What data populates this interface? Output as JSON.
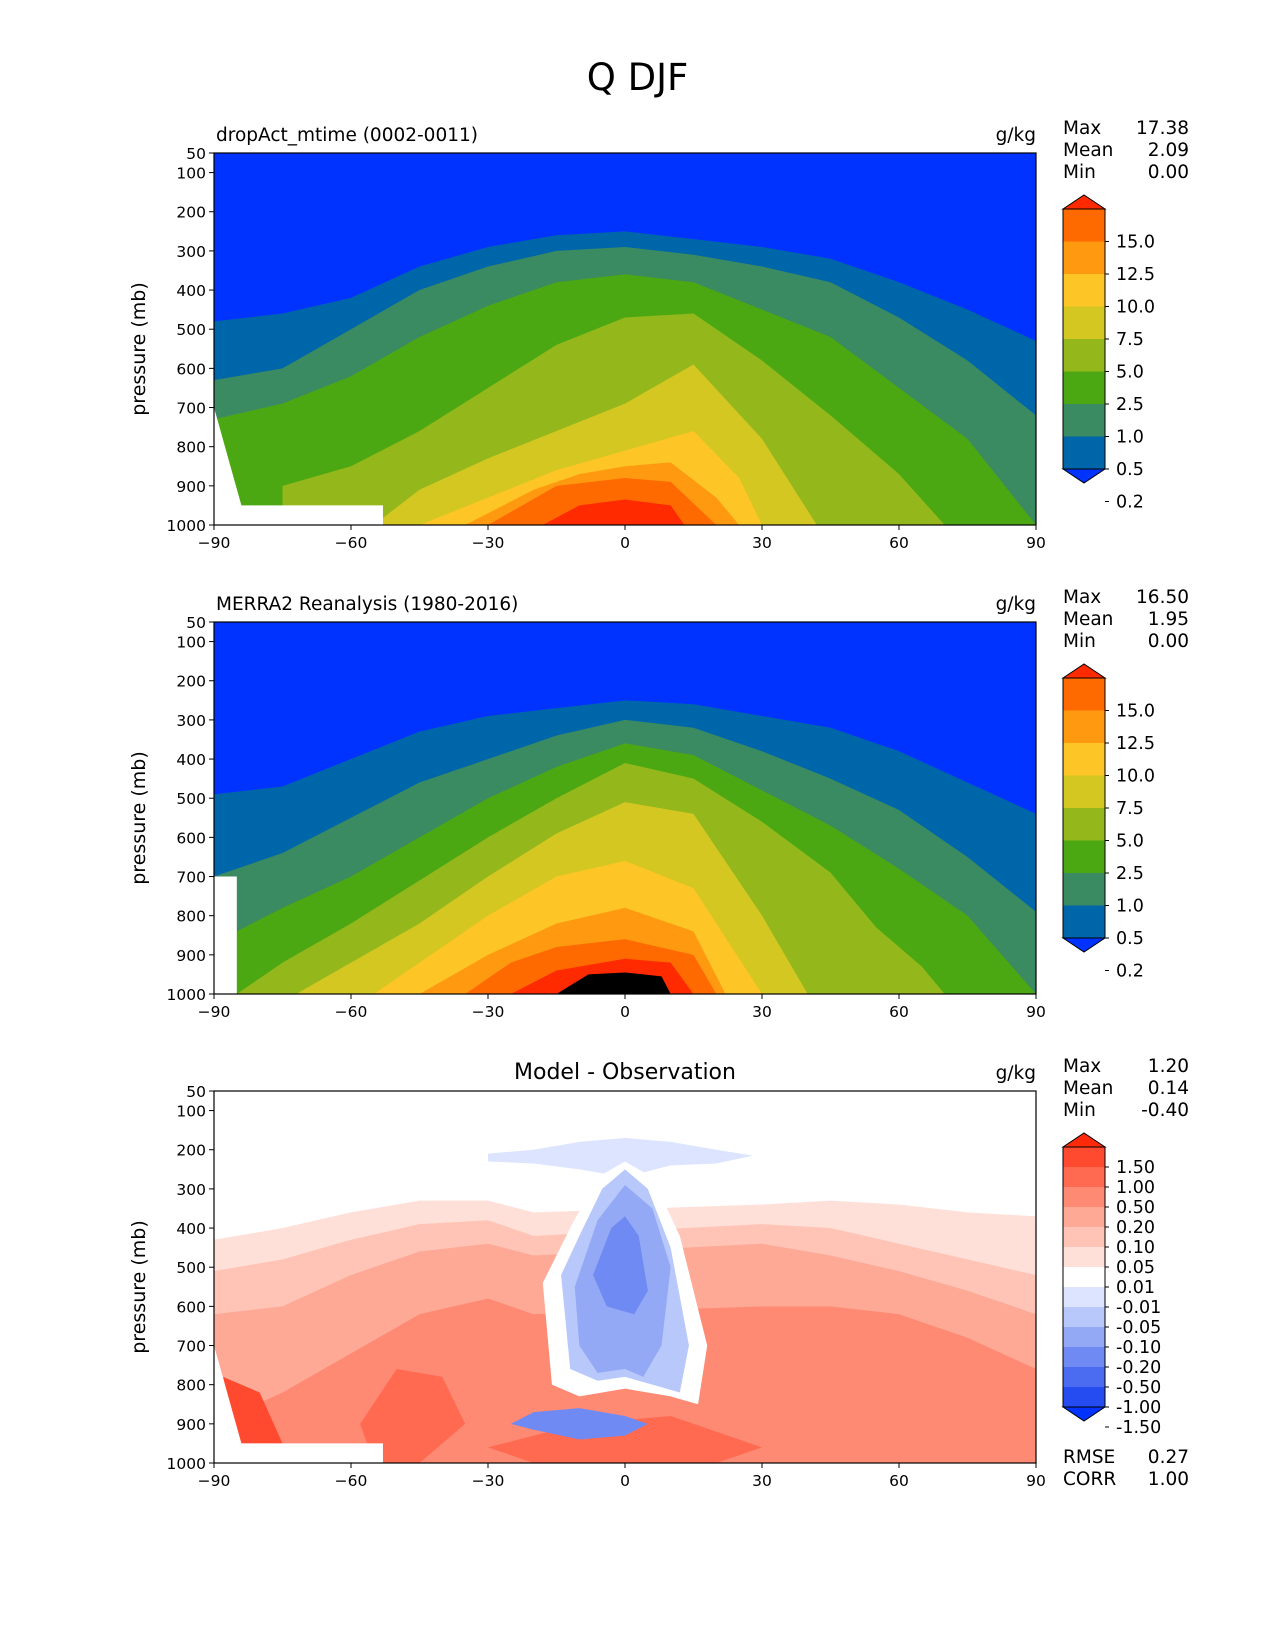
{
  "figure_title": "Q DJF",
  "chart_data": [
    {
      "type": "heatmap",
      "title": "dropAct_mtime (0002-0011)",
      "center_title": "",
      "units": "g/kg",
      "xlabel": "",
      "ylabel": "pressure (mb)",
      "xlim": [
        -90,
        90
      ],
      "ylim": [
        1000,
        50
      ],
      "x_ticks": [
        -90,
        -60,
        -30,
        0,
        30,
        60,
        90
      ],
      "y_ticks": [
        50,
        100,
        200,
        300,
        400,
        500,
        600,
        700,
        800,
        900,
        1000
      ],
      "stats": [
        {
          "label": "Max",
          "value": "17.38"
        },
        {
          "label": "Mean",
          "value": "2.09"
        },
        {
          "label": "Min",
          "value": "0.00"
        }
      ],
      "colorbar": {
        "extend": "both",
        "labels": [
          "15.0",
          "12.5",
          "10.0",
          "7.5",
          "5.0",
          "2.5",
          "1.0",
          "0.5",
          "0.2"
        ],
        "colors": [
          "#ff2a00",
          "#ff6a00",
          "#ff9a10",
          "#fdc525",
          "#d4c722",
          "#94b81b",
          "#4ca812",
          "#3a8a62",
          "#0066aa",
          "#0033ff"
        ]
      },
      "levels": [
        0.2,
        0.5,
        1.0,
        2.5,
        5.0,
        7.5,
        10.0,
        12.5,
        15.0
      ],
      "contours": [
        {
          "lat": [
            -90,
            -75,
            -60,
            -45,
            -30,
            -15,
            0,
            15,
            30,
            45,
            60,
            75,
            90
          ],
          "p": [
            480,
            460,
            420,
            340,
            290,
            260,
            250,
            270,
            290,
            320,
            380,
            450,
            530
          ]
        },
        {
          "lat": [
            -90,
            -75,
            -60,
            -45,
            -30,
            -15,
            0,
            15,
            30,
            45,
            60,
            75,
            90
          ],
          "p": [
            630,
            600,
            500,
            400,
            340,
            300,
            290,
            310,
            340,
            380,
            470,
            580,
            720
          ]
        },
        {
          "lat": [
            -90,
            -75,
            -60,
            -45,
            -30,
            -15,
            0,
            15,
            30,
            45,
            60,
            75,
            90
          ],
          "p": [
            730,
            690,
            620,
            520,
            440,
            380,
            360,
            380,
            450,
            520,
            650,
            780,
            1000
          ]
        },
        {
          "lat": [
            -75,
            -60,
            -45,
            -30,
            -15,
            0,
            15,
            30,
            45,
            60,
            70
          ],
          "p": [
            900,
            850,
            760,
            650,
            540,
            470,
            460,
            580,
            720,
            870,
            1000
          ]
        },
        {
          "lat": [
            -55,
            -45,
            -30,
            -15,
            0,
            15,
            30,
            42
          ],
          "p": [
            1000,
            910,
            830,
            760,
            690,
            590,
            780,
            1000
          ]
        },
        {
          "lat": [
            -45,
            -30,
            -15,
            0,
            15,
            25,
            30
          ],
          "p": [
            1000,
            930,
            860,
            810,
            760,
            880,
            1000
          ]
        },
        {
          "lat": [
            -35,
            -20,
            -10,
            0,
            10,
            20,
            25
          ],
          "p": [
            1000,
            910,
            870,
            850,
            840,
            930,
            1000
          ]
        },
        {
          "lat": [
            -30,
            -15,
            0,
            10,
            20
          ],
          "p": [
            1000,
            900,
            880,
            890,
            1000
          ]
        },
        {
          "lat": [
            -18,
            -10,
            0,
            10,
            13
          ],
          "p": [
            1000,
            950,
            935,
            950,
            1000
          ]
        }
      ],
      "mask": {
        "lat": [
          -90,
          -84,
          -53,
          -53
        ],
        "p": [
          700,
          950,
          950,
          1000
        ]
      }
    },
    {
      "type": "heatmap",
      "title": "MERRA2 Reanalysis (1980-2016)",
      "center_title": "",
      "units": "g/kg",
      "xlabel": "",
      "ylabel": "pressure (mb)",
      "xlim": [
        -90,
        90
      ],
      "ylim": [
        1000,
        50
      ],
      "x_ticks": [
        -90,
        -60,
        -30,
        0,
        30,
        60,
        90
      ],
      "y_ticks": [
        50,
        100,
        200,
        300,
        400,
        500,
        600,
        700,
        800,
        900,
        1000
      ],
      "stats": [
        {
          "label": "Max",
          "value": "16.50"
        },
        {
          "label": "Mean",
          "value": "1.95"
        },
        {
          "label": "Min",
          "value": "0.00"
        }
      ],
      "colorbar": {
        "extend": "both",
        "labels": [
          "15.0",
          "12.5",
          "10.0",
          "7.5",
          "5.0",
          "2.5",
          "1.0",
          "0.5",
          "0.2"
        ],
        "colors": [
          "#ff2a00",
          "#ff6a00",
          "#ff9a10",
          "#fdc525",
          "#d4c722",
          "#94b81b",
          "#4ca812",
          "#3a8a62",
          "#0066aa",
          "#0033ff"
        ]
      },
      "levels": [
        0.2,
        0.5,
        1.0,
        2.5,
        5.0,
        7.5,
        10.0,
        12.5,
        15.0
      ],
      "contours": [
        {
          "lat": [
            -90,
            -75,
            -60,
            -45,
            -30,
            -15,
            0,
            15,
            30,
            45,
            60,
            75,
            90
          ],
          "p": [
            490,
            470,
            400,
            330,
            290,
            270,
            250,
            260,
            290,
            320,
            380,
            460,
            540
          ]
        },
        {
          "lat": [
            -90,
            -75,
            -60,
            -45,
            -30,
            -15,
            0,
            15,
            30,
            45,
            60,
            75,
            90
          ],
          "p": [
            700,
            640,
            550,
            460,
            400,
            340,
            300,
            320,
            380,
            450,
            530,
            650,
            790
          ]
        },
        {
          "lat": [
            -90,
            -75,
            -60,
            -45,
            -30,
            -15,
            0,
            15,
            30,
            45,
            60,
            75,
            90
          ],
          "p": [
            870,
            780,
            700,
            600,
            500,
            420,
            360,
            390,
            480,
            570,
            680,
            800,
            1000
          ]
        },
        {
          "lat": [
            -85,
            -75,
            -60,
            -45,
            -30,
            -15,
            0,
            15,
            30,
            45,
            55,
            65,
            70
          ],
          "p": [
            1000,
            920,
            820,
            710,
            600,
            500,
            410,
            450,
            560,
            690,
            830,
            930,
            1000
          ]
        },
        {
          "lat": [
            -72,
            -60,
            -45,
            -30,
            -15,
            0,
            15,
            30,
            40
          ],
          "p": [
            1000,
            920,
            820,
            700,
            590,
            510,
            540,
            800,
            1000
          ]
        },
        {
          "lat": [
            -55,
            -45,
            -30,
            -15,
            0,
            15,
            30
          ],
          "p": [
            1000,
            920,
            800,
            700,
            660,
            730,
            1000
          ]
        },
        {
          "lat": [
            -45,
            -30,
            -15,
            0,
            15,
            22
          ],
          "p": [
            1000,
            900,
            820,
            780,
            840,
            1000
          ]
        },
        {
          "lat": [
            -35,
            -25,
            -15,
            0,
            15,
            20
          ],
          "p": [
            1000,
            920,
            880,
            860,
            900,
            1000
          ]
        },
        {
          "lat": [
            -25,
            -15,
            0,
            10,
            15
          ],
          "p": [
            1000,
            940,
            910,
            920,
            1000
          ]
        },
        {
          "lat": [
            -15,
            -8,
            0,
            8,
            10
          ],
          "p": [
            1000,
            950,
            945,
            955,
            1000
          ]
        }
      ],
      "mask": {
        "lat": [
          -90,
          -85,
          -85
        ],
        "p": [
          700,
          700,
          1000
        ]
      }
    },
    {
      "type": "heatmap",
      "title": "",
      "center_title": "Model - Observation",
      "units": "g/kg",
      "xlabel": "",
      "ylabel": "pressure (mb)",
      "xlim": [
        -90,
        90
      ],
      "ylim": [
        1000,
        50
      ],
      "x_ticks": [
        -90,
        -60,
        -30,
        0,
        30,
        60,
        90
      ],
      "y_ticks": [
        50,
        100,
        200,
        300,
        400,
        500,
        600,
        700,
        800,
        900,
        1000
      ],
      "stats": [
        {
          "label": "Max",
          "value": "1.20"
        },
        {
          "label": "Mean",
          "value": "0.14"
        },
        {
          "label": "Min",
          "value": "-0.40"
        }
      ],
      "stats_bottom": [
        {
          "label": "RMSE",
          "value": "0.27"
        },
        {
          "label": "CORR",
          "value": "1.00"
        }
      ],
      "colorbar": {
        "extend": "both",
        "labels": [
          "1.50",
          "1.00",
          "0.50",
          "0.20",
          "0.10",
          "0.05",
          "0.01",
          "-0.01",
          "-0.05",
          "-0.10",
          "-0.20",
          "-0.50",
          "-1.00",
          "-1.50"
        ],
        "colors": [
          "#ff2a0a",
          "#ff4a30",
          "#ff6a50",
          "#ff8a74",
          "#fea896",
          "#ffc4b6",
          "#ffe0d8",
          "#ffffff",
          "#dce4ff",
          "#b8c8fb",
          "#93a9f5",
          "#6f8af2",
          "#4b6cf0",
          "#254cf0",
          "#0033ff"
        ]
      },
      "levels": [
        -1.5,
        -1.0,
        -0.5,
        -0.2,
        -0.1,
        -0.05,
        -0.01,
        0.01,
        0.05,
        0.1,
        0.2,
        0.5,
        1.0,
        1.5
      ],
      "warm_contours": [
        {
          "lat": [
            -90,
            -75,
            -60,
            -45,
            -30,
            -20,
            30,
            45,
            60,
            75,
            90
          ],
          "p": [
            430,
            400,
            360,
            330,
            330,
            360,
            340,
            330,
            340,
            360,
            370
          ]
        },
        {
          "lat": [
            -90,
            -75,
            -60,
            -45,
            -30,
            -20,
            30,
            45,
            60,
            75,
            90
          ],
          "p": [
            510,
            480,
            430,
            390,
            380,
            420,
            390,
            400,
            440,
            480,
            520
          ]
        },
        {
          "lat": [
            -90,
            -75,
            -60,
            -45,
            -30,
            -20,
            30,
            45,
            60,
            75,
            90
          ],
          "p": [
            620,
            600,
            520,
            460,
            440,
            470,
            440,
            470,
            510,
            560,
            620
          ]
        },
        {
          "lat": [
            -90,
            -75,
            -60,
            -45,
            -30,
            -20,
            30,
            45,
            60,
            75,
            90
          ],
          "p": [
            900,
            820,
            720,
            620,
            580,
            620,
            600,
            600,
            620,
            680,
            760
          ]
        }
      ],
      "dry_column": {
        "lat": [
          -30,
          -20,
          -10,
          0,
          10,
          20,
          28,
          20,
          10,
          0,
          -10,
          -20,
          -30
        ],
        "p": [
          210,
          200,
          180,
          170,
          180,
          200,
          215,
          235,
          240,
          270,
          250,
          235,
          230
        ]
      },
      "cool_contours": [
        {
          "lat": [
            -14,
            -10,
            -5,
            0,
            5,
            10,
            14,
            12,
            6,
            0,
            -6,
            -12
          ],
          "p": [
            520,
            420,
            300,
            250,
            300,
            450,
            700,
            820,
            800,
            780,
            790,
            760
          ]
        },
        {
          "lat": [
            -11,
            -6,
            0,
            6,
            10,
            8,
            4,
            0,
            -6,
            -10
          ],
          "p": [
            550,
            380,
            290,
            350,
            500,
            700,
            780,
            760,
            770,
            700
          ]
        },
        {
          "lat": [
            -25,
            -20,
            -10,
            0,
            5,
            0,
            -10,
            -20
          ],
          "p": [
            900,
            870,
            860,
            880,
            900,
            930,
            940,
            915
          ]
        }
      ],
      "mask": {
        "lat": [
          -90,
          -84,
          -53,
          -53
        ],
        "p": [
          700,
          950,
          950,
          1000
        ]
      }
    }
  ]
}
